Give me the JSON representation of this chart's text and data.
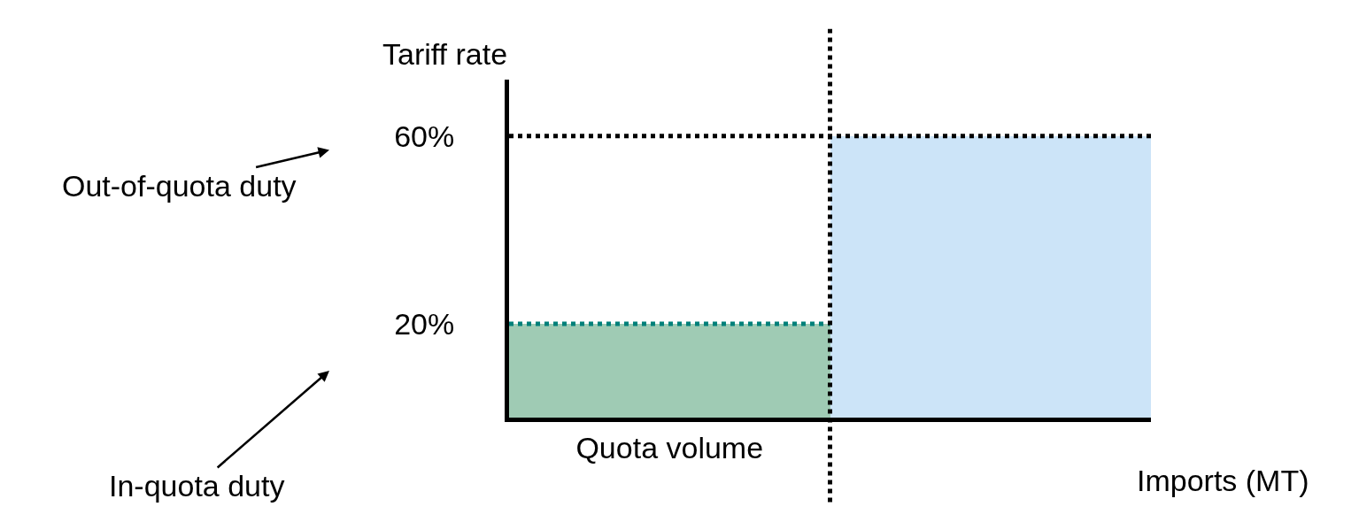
{
  "chart_data": {
    "type": "bar",
    "ylabel": "Tariff rate",
    "xlabel": "Imports (MT)",
    "categories": [
      "Quota volume",
      null
    ],
    "values": [
      20,
      60
    ],
    "colors": [
      "#9fcbb4",
      "#cce4f8"
    ],
    "ylim": [
      0,
      72
    ],
    "yticks": [
      {
        "value": 20,
        "label": "20%"
      },
      {
        "value": 60,
        "label": "60%"
      }
    ],
    "ref_lines": [
      {
        "axis": "y",
        "value": 60,
        "color": "#000000",
        "line_style": "dotted"
      },
      {
        "axis": "y",
        "value": 20,
        "color": "#00807a",
        "line_style": "dotted"
      }
    ],
    "annotations": [
      "Out-of-quota duty",
      "In-quota duty"
    ]
  }
}
